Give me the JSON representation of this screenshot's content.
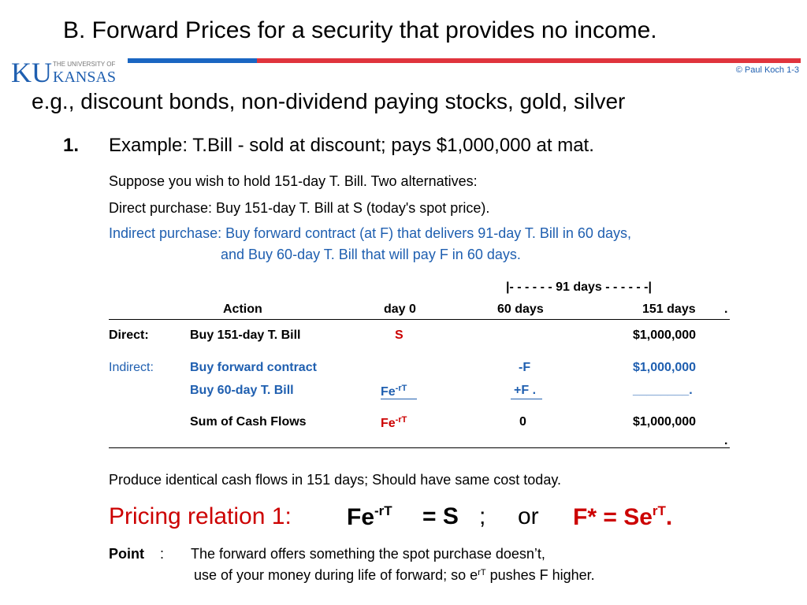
{
  "title": "B.  Forward Prices for a security that provides no income.",
  "logo": {
    "line1": "THE UNIVERSITY OF",
    "ku": "KU",
    "kansas": "KANSAS"
  },
  "copyright": "© Paul Koch 1-3",
  "examples_line": "e.g.,  discount bonds, non-dividend paying stocks,  gold,  silver",
  "item_number": "1.",
  "item_text": "Example:  T.Bill  -  sold at discount;  pays $1,000,000 at mat.",
  "suppose": "Suppose you wish to hold 151-day T. Bill.   Two alternatives:",
  "direct_purchase": "Direct purchase:     Buy 151-day T. Bill at  S  (today's spot price).",
  "indirect_line1": "Indirect purchase:  Buy forward contract (at F) that delivers 91-day T. Bill in 60 days,",
  "indirect_line2": "and  Buy 60-day T. Bill that will pay F in 60 days.",
  "table": {
    "span_label": "|- - - - - -  91 days  - - - - - -|",
    "headers": {
      "action": "Action",
      "day0": "day 0",
      "d60": "60 days",
      "d151": "151 days",
      "end_dot": "."
    },
    "direct_label": "Direct:",
    "direct_action": "Buy 151-day T. Bill",
    "direct_day0": "S",
    "direct_d151": "$1,000,000",
    "indirect_label": "Indirect:",
    "fwd_action": "Buy forward contract",
    "fwd_d60": "-F",
    "fwd_d151": "$1,000,000",
    "bill_action": "Buy 60-day T. Bill",
    "bill_day0": "Fe",
    "bill_day0_sup": "-rT",
    "bill_d60": "+F .",
    "bill_d151": "________.",
    "sum_action": "Sum of Cash Flows",
    "sum_day0": "Fe",
    "sum_day0_sup": "-rT",
    "sum_d60": "0",
    "sum_d151": "$1,000,000",
    "end_dot": "."
  },
  "produce": "Produce identical cash flows in 151 days;   Should have same cost today.",
  "pricing": {
    "label": "Pricing relation 1:",
    "lhs": "Fe",
    "lhs_sup": "-rT",
    "eq1": "=  S",
    "semi": ";",
    "or": "or",
    "fstar": "F*  =  Se",
    "rhs_sup": "rT",
    "dot": "."
  },
  "point": {
    "label": "Point",
    "colon": ":",
    "line1": "The forward offers something the spot purchase doesn’t,",
    "line2_a": "use of your money during life of forward;    so  e",
    "line2_sup": "rT",
    "line2_b": " pushes  F  higher."
  },
  "colors": {
    "blue": "#1f5fb0",
    "red": "#cc0000",
    "bar_blue": "#1a66c2",
    "bar_red": "#e0343d"
  }
}
